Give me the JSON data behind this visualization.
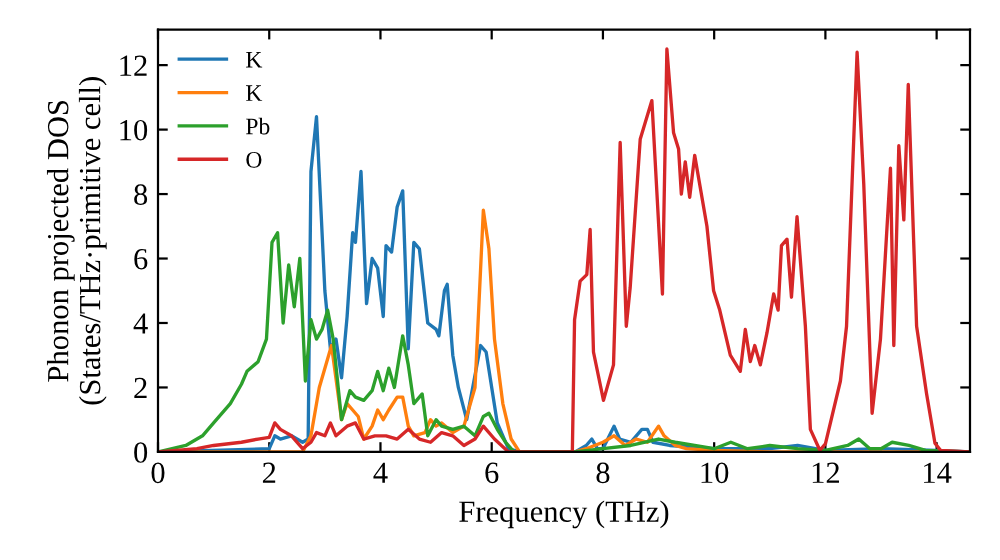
{
  "chart_data": {
    "type": "line",
    "xlabel": "Frequency (THz)",
    "ylabel": "Phonon projected DOS\n(States/THz·primitive cell)",
    "xlim": [
      0,
      14.6
    ],
    "ylim": [
      0,
      13.1
    ],
    "xticks": [
      0,
      2,
      4,
      6,
      8,
      10,
      12,
      14
    ],
    "yticks": [
      0,
      2,
      4,
      6,
      8,
      10,
      12
    ],
    "grid": false,
    "legend": "top left",
    "marker": "none",
    "line_style": "solid",
    "series": [
      {
        "name": "K",
        "color": "#1f77b4",
        "x": [
          0,
          2.0,
          2.1,
          2.2,
          2.4,
          2.6,
          2.7,
          2.75,
          2.85,
          3.0,
          3.1,
          3.2,
          3.3,
          3.4,
          3.5,
          3.55,
          3.65,
          3.75,
          3.85,
          3.95,
          4.05,
          4.1,
          4.2,
          4.3,
          4.4,
          4.5,
          4.6,
          4.7,
          4.85,
          5.0,
          5.05,
          5.15,
          5.2,
          5.3,
          5.4,
          5.55,
          5.8,
          5.9,
          6.0,
          6.1,
          6.3,
          6.5,
          7.5,
          7.7,
          7.8,
          7.9,
          8.0,
          8.2,
          8.3,
          8.5,
          8.7,
          8.8,
          8.9,
          9.2,
          10,
          11,
          11.5,
          12,
          13,
          14,
          14.6
        ],
        "values": [
          0,
          0.1,
          0.5,
          0.4,
          0.5,
          0.3,
          0.4,
          8.7,
          10.4,
          5.0,
          3.2,
          3.5,
          2.3,
          4.2,
          6.8,
          6.5,
          8.7,
          4.6,
          6.0,
          5.7,
          4.2,
          6.4,
          6.2,
          7.6,
          8.1,
          3.2,
          6.5,
          6.3,
          4.0,
          3.8,
          3.6,
          5.0,
          5.2,
          3.0,
          2.0,
          1.0,
          3.3,
          3.1,
          2.0,
          0.9,
          0.1,
          0,
          0,
          0.2,
          0.4,
          0.1,
          0.1,
          0.8,
          0.4,
          0.3,
          0.7,
          0.7,
          0.3,
          0.2,
          0.1,
          0.1,
          0.2,
          0.05,
          0.1,
          0.05,
          0
        ]
      },
      {
        "name": "K",
        "color": "#ff7f0e",
        "x": [
          0,
          2.6,
          2.75,
          2.9,
          3.12,
          3.3,
          3.4,
          3.5,
          3.6,
          3.7,
          3.85,
          3.95,
          4.05,
          4.15,
          4.3,
          4.4,
          4.5,
          4.6,
          4.8,
          4.9,
          5.0,
          5.1,
          5.3,
          5.5,
          5.7,
          5.85,
          5.95,
          6.05,
          6.2,
          6.35,
          6.5,
          7.5,
          7.7,
          8.0,
          8.2,
          8.4,
          8.6,
          8.8,
          9.0,
          9.1,
          9.3,
          9.5,
          10,
          11,
          14.6
        ],
        "values": [
          0,
          0,
          0.5,
          2.0,
          3.3,
          1.0,
          1.5,
          1.3,
          1.1,
          0.4,
          0.8,
          1.3,
          1.0,
          1.3,
          1.7,
          1.7,
          0.8,
          0.5,
          0.6,
          1.0,
          0.8,
          0.9,
          0.6,
          0.8,
          2.0,
          7.5,
          6.3,
          3.5,
          1.5,
          0.4,
          0,
          0,
          0.1,
          0.3,
          0.5,
          0.2,
          0.4,
          0.3,
          0.8,
          0.5,
          0.2,
          0.1,
          0.05,
          0,
          0
        ]
      },
      {
        "name": "Pb",
        "color": "#2ca02c",
        "x": [
          0,
          0.5,
          0.8,
          1.0,
          1.3,
          1.5,
          1.6,
          1.8,
          1.95,
          2.05,
          2.15,
          2.25,
          2.35,
          2.45,
          2.55,
          2.65,
          2.75,
          2.85,
          2.95,
          3.05,
          3.15,
          3.3,
          3.45,
          3.55,
          3.7,
          3.85,
          3.95,
          4.05,
          4.15,
          4.25,
          4.4,
          4.5,
          4.6,
          4.75,
          4.85,
          5.0,
          5.1,
          5.3,
          5.5,
          5.7,
          5.85,
          5.95,
          6.1,
          6.25,
          6.4,
          7.5,
          8,
          8.5,
          9,
          9.3,
          10,
          10.3,
          10.6,
          11,
          11.5,
          12,
          12.4,
          12.6,
          12.8,
          13,
          13.2,
          13.5,
          13.8,
          14.6
        ],
        "values": [
          0,
          0.2,
          0.5,
          0.9,
          1.5,
          2.1,
          2.5,
          2.8,
          3.5,
          6.5,
          6.8,
          4.0,
          5.8,
          4.5,
          6.0,
          2.2,
          4.1,
          3.5,
          3.8,
          4.4,
          3.5,
          1.0,
          1.9,
          1.7,
          1.6,
          1.9,
          2.5,
          1.9,
          2.6,
          2.0,
          3.6,
          2.7,
          1.5,
          1.8,
          0.5,
          1.0,
          0.8,
          0.7,
          0.8,
          0.5,
          1.1,
          1.2,
          0.7,
          0.3,
          0,
          0,
          0.1,
          0.2,
          0.4,
          0.3,
          0.1,
          0.3,
          0.1,
          0.2,
          0.1,
          0.05,
          0.2,
          0.4,
          0.1,
          0.1,
          0.3,
          0.2,
          0.05,
          0
        ]
      },
      {
        "name": "O",
        "color": "#d62728",
        "x": [
          0,
          0.7,
          1.0,
          1.5,
          1.8,
          2.0,
          2.1,
          2.2,
          2.4,
          2.6,
          2.75,
          2.85,
          3.0,
          3.1,
          3.2,
          3.4,
          3.55,
          3.7,
          3.9,
          4.1,
          4.3,
          4.5,
          4.7,
          4.9,
          5.1,
          5.3,
          5.5,
          5.7,
          5.85,
          6.05,
          6.3,
          7.45,
          7.49,
          7.59,
          7.71,
          7.77,
          7.83,
          8.01,
          8.19,
          8.31,
          8.42,
          8.49,
          8.67,
          8.88,
          9.07,
          9.15,
          9.27,
          9.36,
          9.41,
          9.48,
          9.56,
          9.65,
          9.87,
          9.99,
          10.1,
          10.29,
          10.47,
          10.56,
          10.65,
          10.73,
          10.83,
          10.95,
          11.07,
          11.15,
          11.21,
          11.31,
          11.39,
          11.49,
          11.64,
          11.73,
          11.9,
          12.0,
          12.27,
          12.38,
          12.57,
          12.69,
          12.84,
          12.99,
          13.17,
          13.23,
          13.32,
          13.41,
          13.49,
          13.64,
          13.82,
          13.97,
          14.07,
          14.6
        ],
        "values": [
          0,
          0.1,
          0.2,
          0.3,
          0.4,
          0.45,
          0.9,
          0.7,
          0.5,
          0.1,
          0.3,
          0.6,
          0.5,
          0.9,
          0.5,
          0.8,
          0.9,
          0.4,
          0.5,
          0.5,
          0.4,
          0.7,
          0.4,
          0.3,
          0.6,
          0.5,
          0.2,
          0.4,
          0.8,
          0.4,
          0,
          0,
          4.1,
          5.3,
          5.5,
          6.9,
          3.1,
          1.6,
          2.7,
          9.6,
          3.9,
          5.1,
          9.7,
          10.9,
          4.9,
          12.5,
          9.9,
          9.4,
          8.0,
          9.0,
          7.9,
          9.2,
          7.0,
          5.0,
          4.4,
          3.0,
          2.5,
          3.8,
          2.8,
          3.3,
          2.7,
          3.7,
          4.9,
          4.4,
          6.4,
          6.6,
          4.8,
          7.3,
          3.9,
          0.7,
          0.05,
          0.25,
          2.2,
          3.9,
          12.4,
          8.3,
          1.2,
          3.5,
          8.8,
          3.3,
          9.5,
          7.2,
          11.4,
          3.9,
          1.8,
          0.27,
          0.05,
          0
        ]
      }
    ]
  }
}
